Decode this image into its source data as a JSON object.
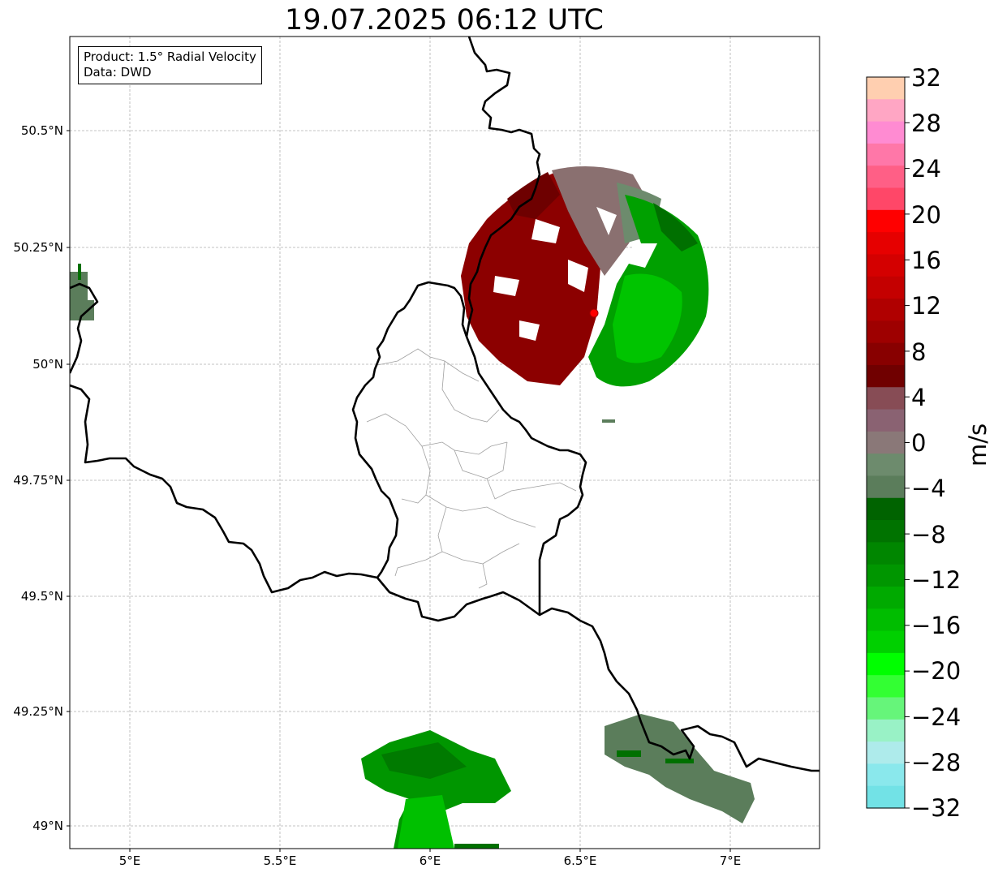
{
  "title": "19.07.2025 06:12 UTC",
  "info_box": {
    "product": "Product: 1.5° Radial Velocity",
    "data_source": "Data: DWD"
  },
  "map": {
    "lon_range": [
      4.8,
      7.3
    ],
    "lat_range": [
      48.955,
      50.705
    ],
    "gridlines": true,
    "lat_ticks": [
      {
        "value": 50.5,
        "label": "50.5°N"
      },
      {
        "value": 50.25,
        "label": "50.25°N"
      },
      {
        "value": 50.0,
        "label": "50°N"
      },
      {
        "value": 49.75,
        "label": "49.75°N"
      },
      {
        "value": 49.5,
        "label": "49.5°N"
      },
      {
        "value": 49.25,
        "label": "49.25°N"
      },
      {
        "value": 49.0,
        "label": "49°N"
      }
    ],
    "lon_ticks": [
      {
        "value": 5.0,
        "label": "5°E"
      },
      {
        "value": 5.5,
        "label": "5.5°E"
      },
      {
        "value": 6.0,
        "label": "6°E"
      },
      {
        "value": 6.5,
        "label": "6.5°E"
      },
      {
        "value": 7.0,
        "label": "7°E"
      }
    ],
    "radar_site": {
      "lon": 6.548,
      "lat": 50.11,
      "color": "#ff0000"
    },
    "border_color": "#000000",
    "admin_border_color": "#a0a0a0"
  },
  "colorbar": {
    "unit": "m/s",
    "vmin": -32,
    "vmax": 32,
    "tick_values": [
      32,
      28,
      24,
      20,
      16,
      12,
      8,
      4,
      0,
      -4,
      -8,
      -12,
      -16,
      -20,
      -24,
      -28,
      -32
    ],
    "tick_labels": [
      "32",
      "28",
      "24",
      "20",
      "16",
      "12",
      "8",
      "4",
      "0",
      "−4",
      "−8",
      "−12",
      "−16",
      "−20",
      "−24",
      "−28",
      "−32"
    ],
    "colors_top_to_bottom": [
      "#ffcfb0",
      "#ffa6c4",
      "#ff8bd2",
      "#ff77a8",
      "#ff5f86",
      "#ff4768",
      "#ff0000",
      "#e60000",
      "#d40000",
      "#c40000",
      "#b00000",
      "#9e0000",
      "#880000",
      "#700000",
      "#874c55",
      "#8a6272",
      "#8a7878",
      "#6d8b6d",
      "#5b7d5b",
      "#006300",
      "#007300",
      "#008600",
      "#009600",
      "#00aa00",
      "#00bd00",
      "#00d000",
      "#00ff00",
      "#33ff33",
      "#66f57a",
      "#99f2c6",
      "#aeebeb",
      "#8ae8ec",
      "#72e2e6"
    ]
  }
}
